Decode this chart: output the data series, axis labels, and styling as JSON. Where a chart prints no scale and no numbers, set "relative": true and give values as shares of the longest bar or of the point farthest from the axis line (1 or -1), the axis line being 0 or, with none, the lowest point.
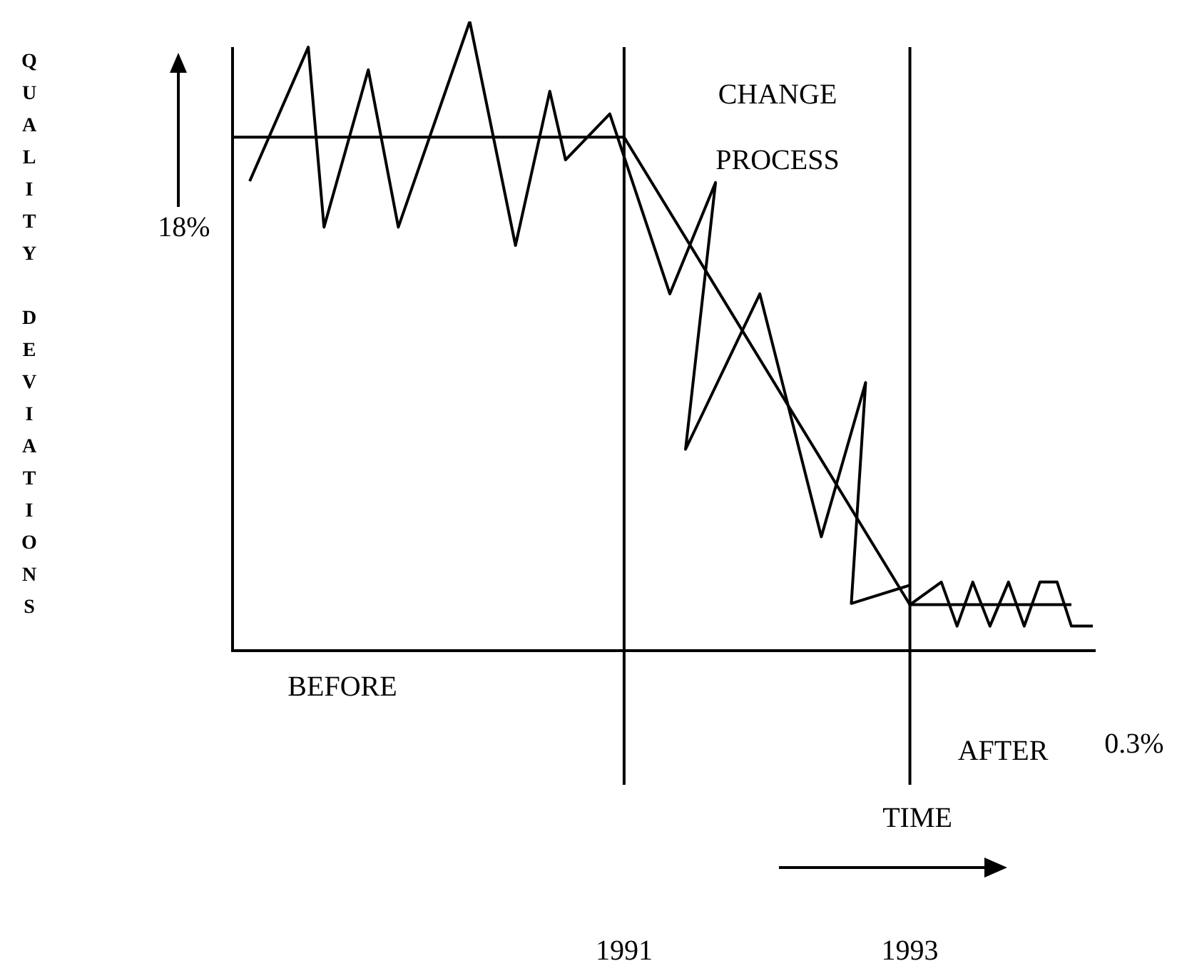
{
  "chart_data": {
    "type": "line",
    "relative": true,
    "xlabel": "TIME",
    "xlim": [
      1988.26,
      1994.3
    ],
    "xticks": [
      1991,
      1993
    ],
    "marker": "none",
    "line_style": "solid",
    "legend": false,
    "series": [
      {
        "color": "#000000",
        "x": [
          1988.38,
          1988.79,
          1988.9,
          1989.21,
          1989.42,
          1989.92,
          1990.24,
          1990.48,
          1990.59,
          1990.9,
          1991.32,
          1991.64,
          1991.43,
          1991.95,
          1992.38,
          1992.69,
          1992.59,
          1993.0
        ],
        "values": [
          0.746,
          0.959,
          0.673,
          0.923,
          0.673,
          1.0,
          0.644,
          0.889,
          0.78,
          0.853,
          0.567,
          0.744,
          0.32,
          0.567,
          0.181,
          0.426,
          0.075,
          0.104
        ]
      },
      {
        "color": "#000000",
        "x": [
          1993.0,
          1993.22,
          1993.33,
          1993.44,
          1993.56,
          1993.69,
          1993.8,
          1993.91,
          1994.03,
          1994.13,
          1994.28
        ],
        "values": [
          0.073,
          0.109,
          0.039,
          0.109,
          0.039,
          0.109,
          0.039,
          0.109,
          0.109,
          0.039,
          0.039
        ]
      },
      {
        "color": "#000000",
        "x": [
          1988.26,
          1991.0,
          1993.0,
          1994.13
        ],
        "values": [
          0.816,
          0.816,
          0.073,
          0.073
        ]
      }
    ],
    "ref_lines": [
      {
        "axis": "x",
        "value": 1991,
        "color": "#000000"
      },
      {
        "axis": "x",
        "value": 1993,
        "color": "#000000"
      }
    ],
    "annotations": [
      "CHANGE PROCESS",
      "18%",
      "BEFORE",
      "AFTER",
      "0.3%",
      "QUALITY DEVIATIONS"
    ]
  }
}
